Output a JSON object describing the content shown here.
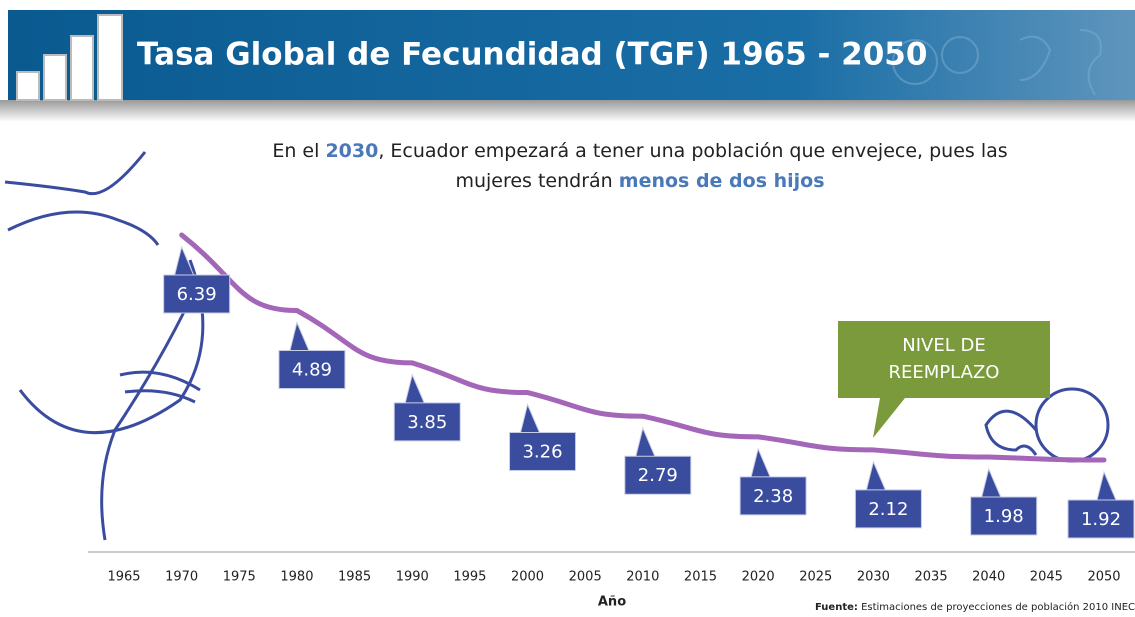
{
  "header": {
    "title": "Tasa Global de Fecundidad (TGF) 1965 - 2050"
  },
  "subtitle": {
    "line1": [
      "En el ",
      "2030",
      ", Ecuador empezará a tener una población que envejece, pues las"
    ],
    "line2": [
      "mujeres tendrán ",
      "menos de dos hijos"
    ]
  },
  "chart_data": {
    "type": "line",
    "x": [
      1970,
      1980,
      1990,
      2000,
      2010,
      2020,
      2030,
      2040,
      2050
    ],
    "values": [
      6.39,
      4.89,
      3.85,
      3.26,
      2.79,
      2.38,
      2.12,
      1.98,
      1.92
    ],
    "color": "#a466b8",
    "xlim": [
      1965,
      2050
    ],
    "xticks": [
      1965,
      1970,
      1975,
      1980,
      1985,
      1990,
      1995,
      2000,
      2005,
      2010,
      2015,
      2020,
      2025,
      2030,
      2035,
      2040,
      2045,
      2050
    ],
    "xlabel": "Año",
    "annotation": [
      "NIVEL DE",
      "REEMPLAZO"
    ]
  },
  "source": {
    "label": "Fuente:",
    "text": "Estimaciones de proyecciones de población 2010 INEC"
  }
}
